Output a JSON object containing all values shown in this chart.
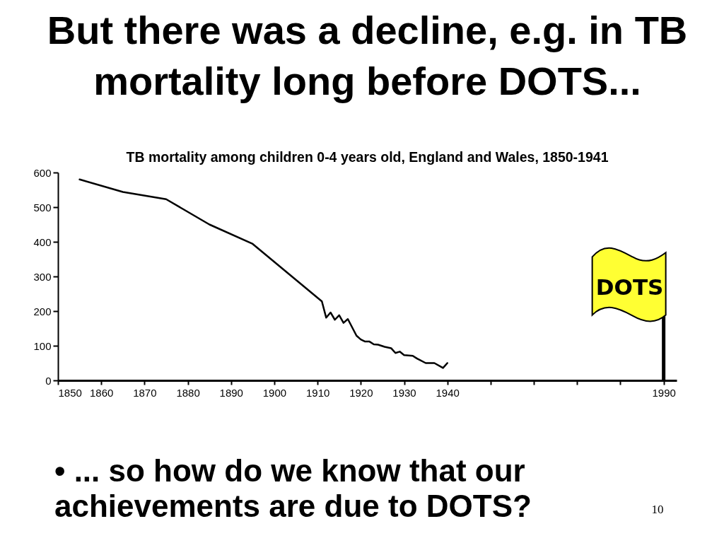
{
  "chart_data": {
    "type": "line",
    "title": "But there was a decline, e.g. in TB mortality long before DOTS...",
    "subtitle": "TB mortality among children 0-4 years old, England and Wales, 1850-1941",
    "x": [
      1855,
      1865,
      1875,
      1885,
      1895,
      1911,
      1912,
      1913,
      1914,
      1915,
      1916,
      1917,
      1919,
      1920,
      1921,
      1922,
      1923,
      1924,
      1925.5,
      1927,
      1928,
      1929,
      1930,
      1932,
      1933,
      1935,
      1937,
      1939,
      1940
    ],
    "series": [
      {
        "color": "#000000",
        "values": [
          580,
          544,
          523,
          450,
          394,
          228,
          181,
          196,
          175,
          188,
          166,
          177,
          129,
          118,
          112,
          112,
          104,
          103,
          97,
          93,
          79,
          83,
          73,
          71,
          63,
          50,
          50,
          36,
          50
        ]
      }
    ],
    "xlim": [
      1850,
      1993
    ],
    "ylim": [
      0,
      600
    ],
    "xticks": [
      1850,
      1860,
      1870,
      1880,
      1890,
      1900,
      1910,
      1920,
      1930,
      1940,
      {
        "value": 1950,
        "label": null
      },
      {
        "value": 1960,
        "label": null
      },
      {
        "value": 1970,
        "label": null
      },
      {
        "value": 1980,
        "label": null
      },
      1990
    ],
    "yticks": [
      0,
      100,
      200,
      300,
      400,
      500,
      600
    ],
    "ref_lines": [
      {
        "axis": "x",
        "value": 1990,
        "label": "DOTS",
        "color": "#000000"
      }
    ],
    "annotations": [
      "• ... so how do we know that our achievements are due to DOTS?",
      "10"
    ]
  }
}
